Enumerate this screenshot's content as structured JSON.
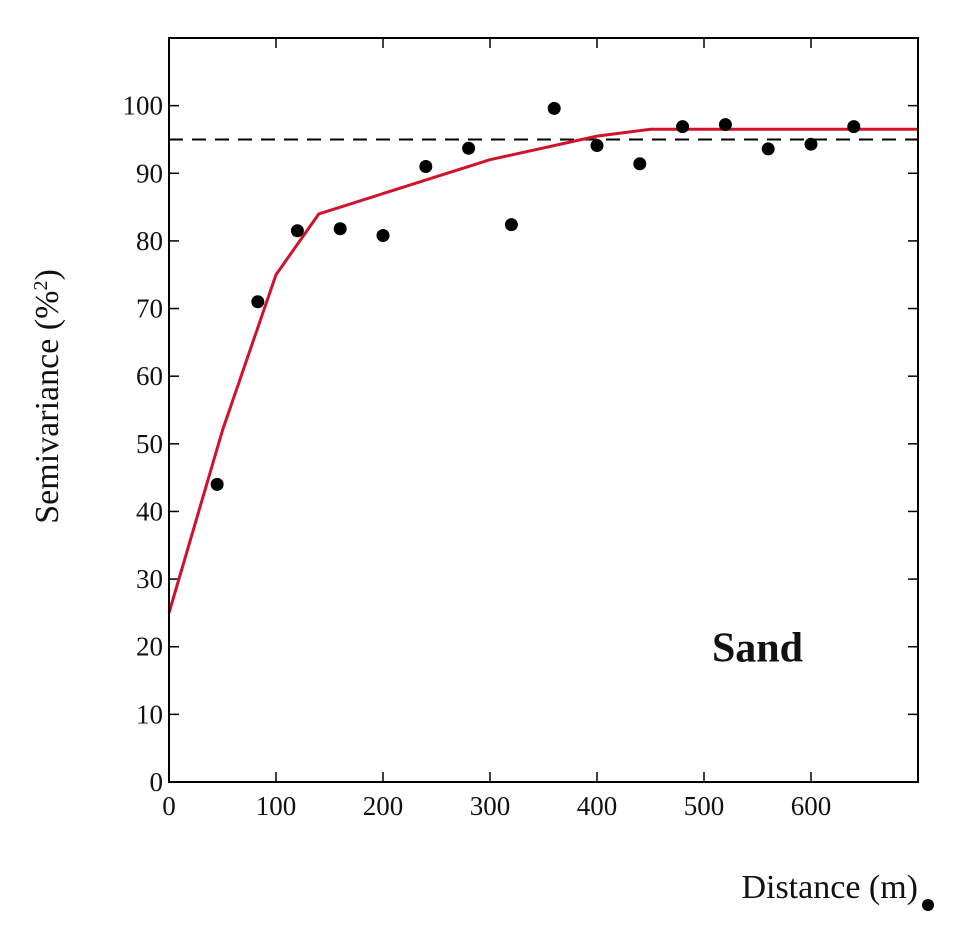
{
  "chart_data": {
    "type": "scatter",
    "title": "",
    "xlabel": "Distance (m)",
    "ylabel": "Semivariance (%",
    "ylabel_sup": "2",
    "ylabel_close": ")",
    "xlim": [
      0,
      700
    ],
    "ylim": [
      0,
      110
    ],
    "xticks": [
      0,
      100,
      200,
      300,
      400,
      500,
      600
    ],
    "yticks": [
      0,
      10,
      20,
      30,
      40,
      50,
      60,
      70,
      80,
      90,
      100
    ],
    "grid": false,
    "annotation": "Sand",
    "sill": 95,
    "points": [
      {
        "x": 45,
        "y": 44
      },
      {
        "x": 83,
        "y": 71
      },
      {
        "x": 120,
        "y": 81.5
      },
      {
        "x": 160,
        "y": 81.8
      },
      {
        "x": 200,
        "y": 80.8
      },
      {
        "x": 240,
        "y": 91
      },
      {
        "x": 280,
        "y": 93.7
      },
      {
        "x": 320,
        "y": 82.4
      },
      {
        "x": 360,
        "y": 99.6
      },
      {
        "x": 400,
        "y": 94.1
      },
      {
        "x": 440,
        "y": 91.4
      },
      {
        "x": 480,
        "y": 96.9
      },
      {
        "x": 520,
        "y": 97.2
      },
      {
        "x": 560,
        "y": 93.6
      },
      {
        "x": 600,
        "y": 94.3
      },
      {
        "x": 640,
        "y": 96.9
      }
    ],
    "fit_curve": [
      {
        "x": 0,
        "y": 25
      },
      {
        "x": 50,
        "y": 52
      },
      {
        "x": 100,
        "y": 75
      },
      {
        "x": 140,
        "y": 84
      },
      {
        "x": 200,
        "y": 87
      },
      {
        "x": 300,
        "y": 92
      },
      {
        "x": 400,
        "y": 95.5
      },
      {
        "x": 450,
        "y": 96.5
      },
      {
        "x": 700,
        "y": 96.5
      }
    ],
    "colors": {
      "points": "#000000",
      "fit_curve": "#d0122d",
      "sill_line": "#000000",
      "axis": "#000000"
    }
  }
}
